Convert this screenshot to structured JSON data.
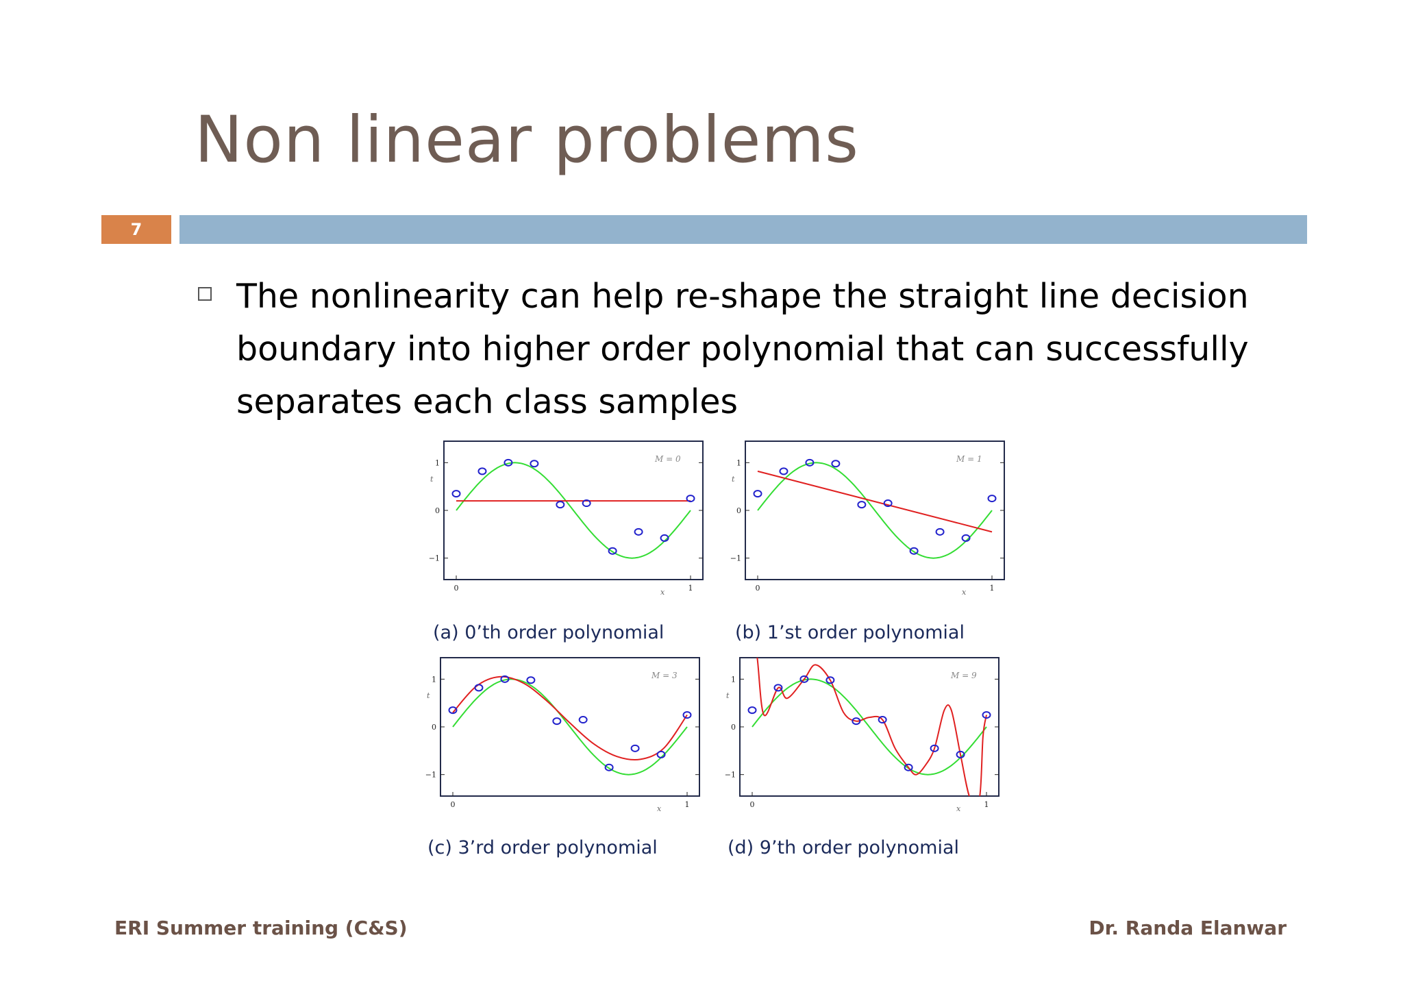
{
  "slide": {
    "title": "Non linear problems",
    "page_number": "7",
    "bullet": "The nonlinearity can help re-shape the straight line decision boundary into higher order polynomial that can successfully separates each class samples",
    "footer_left": "ERI Summer training (C&S)",
    "footer_right": "Dr. Randa Elanwar"
  },
  "colors": {
    "title": "#6f5d54",
    "accent_orange": "#d9834a",
    "accent_blue": "#93b3cd",
    "fit": "#e02020",
    "target": "#33dd33",
    "points": "#2222cc"
  },
  "chart_data": [
    {
      "type": "line",
      "caption": "(a)  0’th order polynomial",
      "label": "M = 0",
      "xticks": [
        "0",
        "1"
      ],
      "yticks": [
        "1",
        "0",
        "−1"
      ],
      "xlabel": "x",
      "ylabel": "t",
      "xlim": [
        0,
        1
      ],
      "ylim": [
        -1.45,
        1.45
      ],
      "points": [
        [
          0,
          0.35
        ],
        [
          0.111,
          0.82
        ],
        [
          0.222,
          1.0
        ],
        [
          0.333,
          0.98
        ],
        [
          0.444,
          0.12
        ],
        [
          0.556,
          0.15
        ],
        [
          0.667,
          -0.85
        ],
        [
          0.778,
          -0.45
        ],
        [
          0.889,
          -0.58
        ],
        [
          1.0,
          0.25
        ]
      ],
      "fit": {
        "kind": "constant",
        "value": 0.2
      }
    },
    {
      "type": "line",
      "caption": "(b)  1’st order polynomial",
      "label": "M = 1",
      "xticks": [
        "0",
        "1"
      ],
      "yticks": [
        "1",
        "0",
        "−1"
      ],
      "xlabel": "x",
      "ylabel": "t",
      "xlim": [
        0,
        1
      ],
      "ylim": [
        -1.45,
        1.45
      ],
      "points": [
        [
          0,
          0.35
        ],
        [
          0.111,
          0.82
        ],
        [
          0.222,
          1.0
        ],
        [
          0.333,
          0.98
        ],
        [
          0.444,
          0.12
        ],
        [
          0.556,
          0.15
        ],
        [
          0.667,
          -0.85
        ],
        [
          0.778,
          -0.45
        ],
        [
          0.889,
          -0.58
        ],
        [
          1.0,
          0.25
        ]
      ],
      "fit": {
        "kind": "linear",
        "start": 0.82,
        "end": -0.45
      }
    },
    {
      "type": "line",
      "caption": "(c)  3’rd order polynomial",
      "label": "M = 3",
      "xticks": [
        "0",
        "1"
      ],
      "yticks": [
        "1",
        "0",
        "−1"
      ],
      "xlabel": "x",
      "ylabel": "t",
      "xlim": [
        0,
        1
      ],
      "ylim": [
        -1.45,
        1.45
      ],
      "points": [
        [
          0,
          0.35
        ],
        [
          0.111,
          0.82
        ],
        [
          0.222,
          1.0
        ],
        [
          0.333,
          0.98
        ],
        [
          0.444,
          0.12
        ],
        [
          0.556,
          0.15
        ],
        [
          0.667,
          -0.85
        ],
        [
          0.778,
          -0.45
        ],
        [
          0.889,
          -0.58
        ],
        [
          1.0,
          0.25
        ]
      ],
      "fit": {
        "kind": "curve",
        "samples": [
          [
            0,
            0.3
          ],
          [
            0.1,
            0.85
          ],
          [
            0.2,
            1.05
          ],
          [
            0.3,
            0.92
          ],
          [
            0.4,
            0.55
          ],
          [
            0.5,
            0.08
          ],
          [
            0.6,
            -0.35
          ],
          [
            0.7,
            -0.62
          ],
          [
            0.8,
            -0.68
          ],
          [
            0.9,
            -0.45
          ],
          [
            1.0,
            0.25
          ]
        ]
      }
    },
    {
      "type": "line",
      "caption": "(d)  9’th order polynomial",
      "label": "M = 9",
      "xticks": [
        "0",
        "1"
      ],
      "yticks": [
        "1",
        "0",
        "−1"
      ],
      "xlabel": "x",
      "ylabel": "t",
      "xlim": [
        0,
        1
      ],
      "ylim": [
        -1.45,
        1.45
      ],
      "points": [
        [
          0,
          0.35
        ],
        [
          0.111,
          0.82
        ],
        [
          0.222,
          1.0
        ],
        [
          0.333,
          0.98
        ],
        [
          0.444,
          0.12
        ],
        [
          0.556,
          0.15
        ],
        [
          0.667,
          -0.85
        ],
        [
          0.778,
          -0.45
        ],
        [
          0.889,
          -0.58
        ],
        [
          1.0,
          0.25
        ]
      ],
      "fit": {
        "kind": "curve",
        "samples": [
          [
            0.0,
            1.5
          ],
          [
            0.02,
            1.5
          ],
          [
            0.05,
            0.25
          ],
          [
            0.111,
            0.82
          ],
          [
            0.15,
            0.6
          ],
          [
            0.222,
            1.0
          ],
          [
            0.27,
            1.3
          ],
          [
            0.333,
            0.98
          ],
          [
            0.39,
            0.3
          ],
          [
            0.444,
            0.12
          ],
          [
            0.5,
            0.2
          ],
          [
            0.556,
            0.15
          ],
          [
            0.61,
            -0.45
          ],
          [
            0.667,
            -0.85
          ],
          [
            0.7,
            -1.0
          ],
          [
            0.74,
            -0.8
          ],
          [
            0.778,
            -0.45
          ],
          [
            0.82,
            0.35
          ],
          [
            0.85,
            0.35
          ],
          [
            0.889,
            -0.58
          ],
          [
            0.93,
            -1.5
          ],
          [
            0.97,
            -1.5
          ],
          [
            0.985,
            -0.2
          ],
          [
            1.0,
            0.25
          ]
        ]
      }
    }
  ]
}
